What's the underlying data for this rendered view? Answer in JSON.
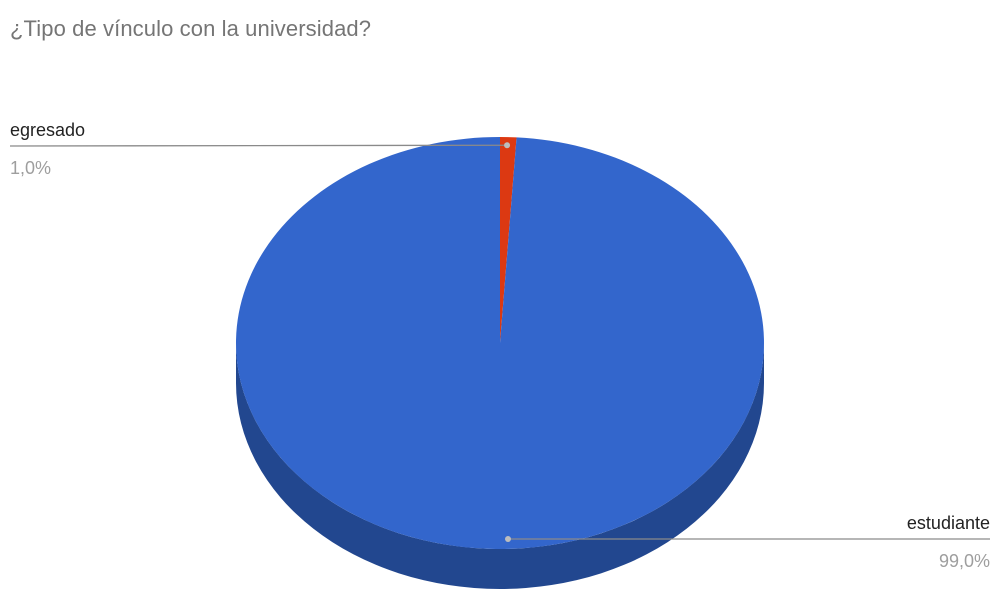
{
  "chart_data": {
    "type": "pie",
    "title": "¿Tipo de vínculo con la universidad?",
    "style": "3d",
    "slices": [
      {
        "label": "egresado",
        "value": 1.0,
        "percent_label": "1,0%",
        "color": "#dc3912",
        "side_color": "#9a2810"
      },
      {
        "label": "estudiante",
        "value": 99.0,
        "percent_label": "99,0%",
        "color": "#3366cc",
        "side_color": "#22478f"
      }
    ],
    "legend": "labels with leader lines"
  }
}
